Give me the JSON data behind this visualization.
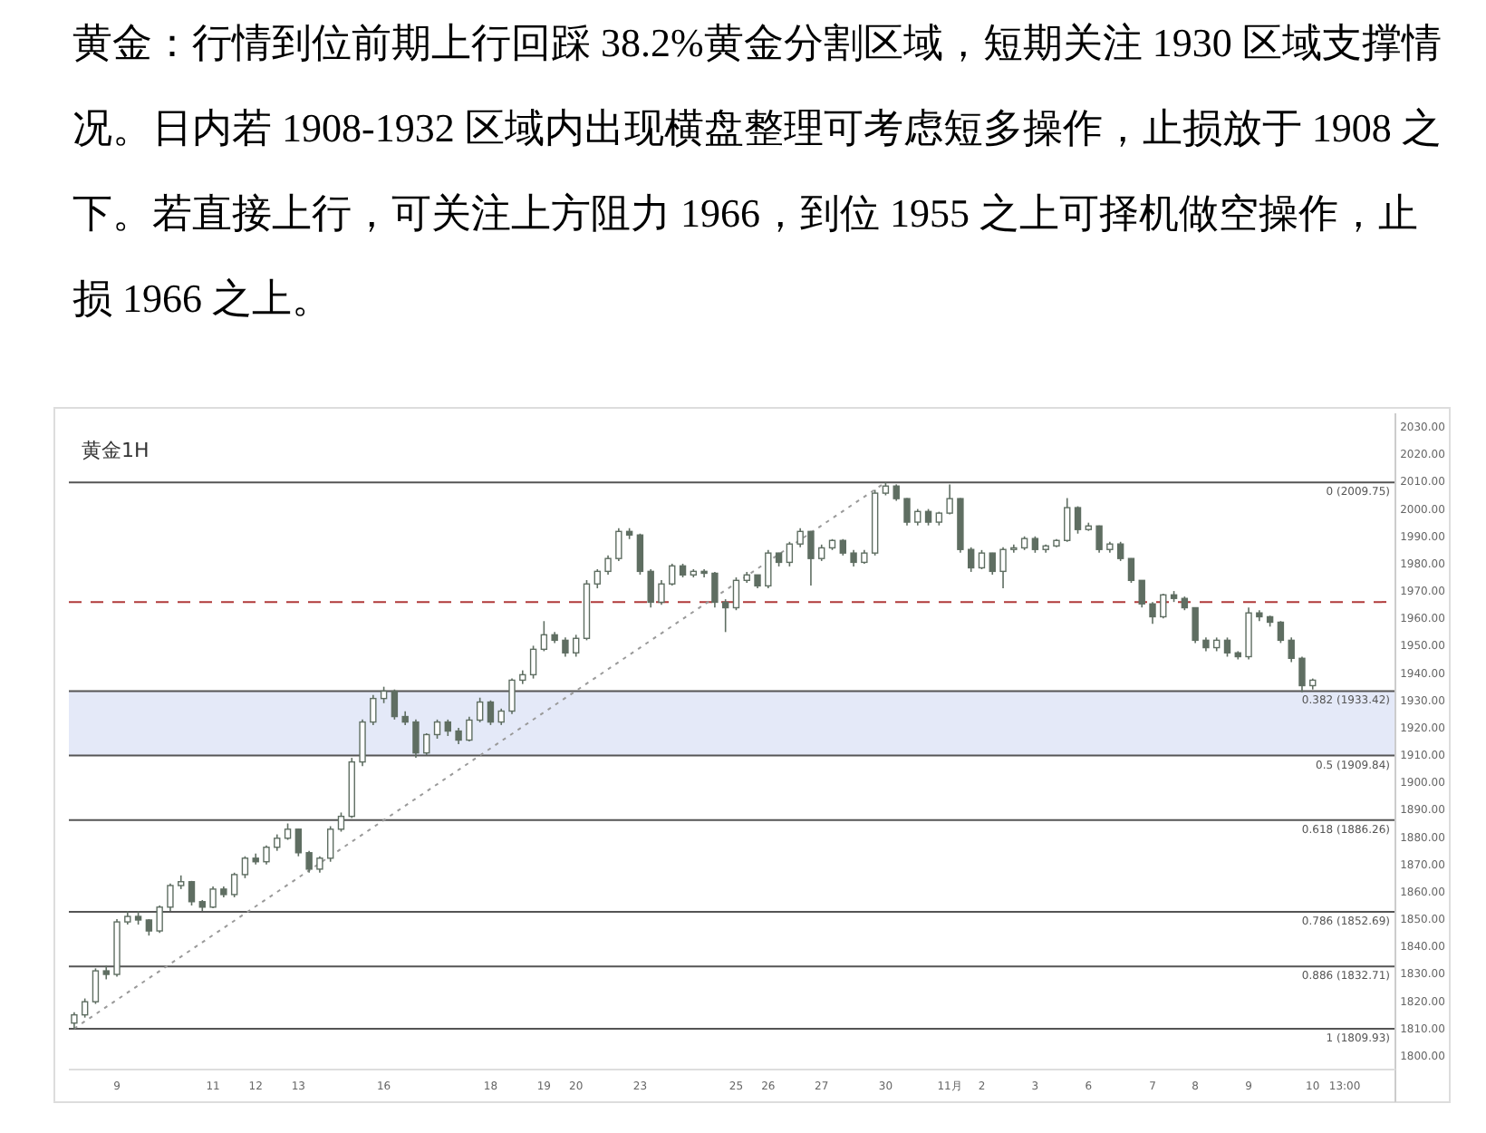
{
  "chart_data": {
    "type": "candlestick",
    "title": "黄金1H",
    "annotations": [
      "黄金：行情到位前期上行回踩 38.2%黄金分割区域，短期关注 1930 区域支撑情况。日内若 1908-1932 区域内出现横盘整理可考虑短多操作，止损放于 1908 之下。若直接上行，可关注上方阻力 1966，到位 1955 之上可择机做空操作，止损 1966 之上。"
    ],
    "color": "#5f6e62",
    "categories": [
      null,
      null,
      null,
      null,
      "9",
      null,
      null,
      null,
      null,
      null,
      null,
      null,
      null,
      "11",
      null,
      null,
      null,
      "12",
      null,
      null,
      null,
      "13",
      null,
      null,
      null,
      null,
      null,
      null,
      null,
      "16",
      null,
      null,
      null,
      null,
      null,
      null,
      null,
      null,
      null,
      "18",
      null,
      null,
      null,
      null,
      "19",
      null,
      null,
      "20",
      null,
      null,
      null,
      null,
      null,
      "23",
      null,
      null,
      null,
      null,
      null,
      null,
      null,
      null,
      "25",
      null,
      null,
      "26",
      null,
      null,
      null,
      null,
      "27",
      null,
      null,
      null,
      null,
      null,
      "30",
      null,
      null,
      null,
      null,
      null,
      "11月",
      null,
      null,
      "2",
      null,
      null,
      null,
      null,
      "3",
      null,
      null,
      null,
      null,
      "6",
      null,
      null,
      null,
      null,
      null,
      "7",
      null,
      null,
      null,
      "8",
      null,
      null,
      null,
      null,
      "9",
      null,
      null,
      null,
      null,
      null,
      "10",
      null,
      null,
      "13:00"
    ],
    "ohlc": [
      [
        1812,
        1816,
        1809.9,
        1815
      ],
      [
        1815,
        1821,
        1814,
        1819.8
      ],
      [
        1819.8,
        1832,
        1819,
        1831.1
      ],
      [
        1831.1,
        1833,
        1828,
        1829.8
      ],
      [
        1829.8,
        1850,
        1829,
        1849
      ],
      [
        1849,
        1853,
        1848,
        1851
      ],
      [
        1851,
        1853,
        1848,
        1849.7
      ],
      [
        1849.7,
        1850,
        1844,
        1845.7
      ],
      [
        1845.7,
        1855,
        1845,
        1854.4
      ],
      [
        1854.4,
        1863,
        1853,
        1862.3
      ],
      [
        1862.3,
        1866,
        1861,
        1863.7
      ],
      [
        1863.7,
        1864,
        1855,
        1856.4
      ],
      [
        1856.4,
        1857,
        1853,
        1854.4
      ],
      [
        1854.4,
        1862,
        1854,
        1861
      ],
      [
        1861,
        1862,
        1858,
        1859
      ],
      [
        1859,
        1867,
        1858,
        1866.3
      ],
      [
        1866.3,
        1873,
        1865,
        1872.3
      ],
      [
        1872.3,
        1874,
        1870,
        1871
      ],
      [
        1871,
        1877,
        1870,
        1876.3
      ],
      [
        1876.3,
        1881,
        1875,
        1879.6
      ],
      [
        1879.6,
        1885,
        1879,
        1882.9
      ],
      [
        1882.9,
        1883,
        1873,
        1874.3
      ],
      [
        1874.3,
        1875,
        1867,
        1868.3
      ],
      [
        1868.3,
        1873,
        1867,
        1872.3
      ],
      [
        1872.3,
        1884,
        1871,
        1882.9
      ],
      [
        1882.9,
        1889,
        1882,
        1887.6
      ],
      [
        1887.6,
        1909,
        1887,
        1907.5
      ],
      [
        1907.5,
        1923,
        1906,
        1922.1
      ],
      [
        1922.1,
        1932,
        1921,
        1930.7
      ],
      [
        1930.7,
        1935,
        1929,
        1933.4
      ],
      [
        1933.4,
        1934,
        1923,
        1924.1
      ],
      [
        1924.1,
        1926,
        1921,
        1922.1
      ],
      [
        1922.1,
        1923,
        1909,
        1910.8
      ],
      [
        1910.8,
        1918,
        1910,
        1917.5
      ],
      [
        1917.5,
        1923,
        1916,
        1922.1
      ],
      [
        1922.1,
        1923,
        1917,
        1918.8
      ],
      [
        1918.8,
        1920,
        1914,
        1915.5
      ],
      [
        1915.5,
        1924,
        1915,
        1922.8
      ],
      [
        1922.8,
        1931,
        1922,
        1929.4
      ],
      [
        1929.4,
        1930,
        1921,
        1922.1
      ],
      [
        1922.1,
        1927,
        1921,
        1926.1
      ],
      [
        1926.1,
        1938,
        1925,
        1937.4
      ],
      [
        1937.4,
        1941,
        1936,
        1939.4
      ],
      [
        1939.4,
        1950,
        1938,
        1948.7
      ],
      [
        1948.7,
        1959,
        1948,
        1954
      ],
      [
        1954,
        1955,
        1951,
        1952
      ],
      [
        1952,
        1953,
        1946,
        1947.4
      ],
      [
        1947.4,
        1954,
        1946,
        1952.7
      ],
      [
        1952.7,
        1974,
        1952,
        1972.6
      ],
      [
        1972.6,
        1978,
        1971,
        1977.2
      ],
      [
        1977.2,
        1983,
        1976,
        1981.9
      ],
      [
        1981.9,
        1993,
        1981,
        1991.8
      ],
      [
        1991.8,
        1993,
        1989,
        1990.5
      ],
      [
        1990.5,
        1991,
        1976,
        1977.2
      ],
      [
        1977.2,
        1978,
        1964,
        1965.9
      ],
      [
        1965.9,
        1974,
        1965,
        1972.6
      ],
      [
        1972.6,
        1980,
        1972,
        1979.2
      ],
      [
        1979.2,
        1980,
        1975,
        1975.9
      ],
      [
        1975.9,
        1978,
        1975,
        1977.2
      ],
      [
        1977.2,
        1978,
        1975,
        1976.5
      ],
      [
        1976.5,
        1977,
        1964,
        1965.9
      ],
      [
        1965.9,
        1967,
        1955,
        1963.9
      ],
      [
        1963.9,
        1975,
        1963,
        1973.9
      ],
      [
        1973.9,
        1977,
        1973,
        1975.9
      ],
      [
        1975.9,
        1976,
        1971,
        1971.9
      ],
      [
        1971.9,
        1985,
        1971,
        1983.9
      ],
      [
        1983.9,
        1984,
        1979,
        1980.5
      ],
      [
        1980.5,
        1988,
        1979,
        1987.2
      ],
      [
        1987.2,
        1993,
        1986,
        1991.8
      ],
      [
        1991.8,
        1992,
        1972,
        1981.9
      ],
      [
        1981.9,
        1987,
        1981,
        1985.8
      ],
      [
        1985.8,
        1989,
        1985,
        1988.5
      ],
      [
        1988.5,
        1989,
        1983,
        1983.9
      ],
      [
        1983.9,
        1985,
        1979,
        1980.5
      ],
      [
        1980.5,
        1985,
        1980,
        1983.9
      ],
      [
        1983.9,
        2007,
        1983,
        2005.8
      ],
      [
        2005.8,
        2009.75,
        2005,
        2008.4
      ],
      [
        2008.4,
        2009,
        2003,
        2003.8
      ],
      [
        2003.8,
        2004,
        1994,
        1995.2
      ],
      [
        1995.2,
        2000,
        1994,
        1999.1
      ],
      [
        1999.1,
        2000,
        1994,
        1995.2
      ],
      [
        1995.2,
        1999,
        1994,
        1998.5
      ],
      [
        1998.5,
        2009,
        1998,
        2003.8
      ],
      [
        2003.8,
        2004,
        1984,
        1985.2
      ],
      [
        1985.2,
        1986,
        1977,
        1978.5
      ],
      [
        1978.5,
        1985,
        1978,
        1983.9
      ],
      [
        1983.9,
        1984,
        1976,
        1977.2
      ],
      [
        1977.2,
        1986,
        1971,
        1985.2
      ],
      [
        1985.2,
        1987,
        1984,
        1985.8
      ],
      [
        1985.8,
        1990,
        1985,
        1989.2
      ],
      [
        1989.2,
        1990,
        1984,
        1985.2
      ],
      [
        1985.2,
        1987,
        1984,
        1986.5
      ],
      [
        1986.5,
        1989,
        1986,
        1988.5
      ],
      [
        1988.5,
        2004,
        1988,
        2000.5
      ],
      [
        2000.5,
        2001,
        1991,
        1992.5
      ],
      [
        1992.5,
        1995,
        1992,
        1993.8
      ],
      [
        1993.8,
        1994,
        1984,
        1985.2
      ],
      [
        1985.2,
        1988,
        1984,
        1987.2
      ],
      [
        1987.2,
        1988,
        1981,
        1981.9
      ],
      [
        1981.9,
        1982,
        1973,
        1973.9
      ],
      [
        1973.9,
        1974,
        1964,
        1965.3
      ],
      [
        1965.3,
        1966,
        1958,
        1960.6
      ],
      [
        1960.6,
        1969,
        1960,
        1968.6
      ],
      [
        1968.6,
        1970,
        1966,
        1967.3
      ],
      [
        1967.3,
        1968,
        1963,
        1963.9
      ],
      [
        1963.9,
        1964,
        1951,
        1952
      ],
      [
        1952,
        1953,
        1948,
        1949.3
      ],
      [
        1949.3,
        1953,
        1948,
        1952
      ],
      [
        1952,
        1953,
        1946,
        1947.4
      ],
      [
        1947.4,
        1948,
        1945,
        1946
      ],
      [
        1946,
        1964,
        1945,
        1962
      ],
      [
        1962,
        1963,
        1959,
        1960.6
      ],
      [
        1960.6,
        1961,
        1957,
        1958.6
      ],
      [
        1958.6,
        1959,
        1951,
        1952
      ],
      [
        1952,
        1953,
        1944,
        1945.4
      ],
      [
        1945.4,
        1946,
        1933,
        1935.4
      ],
      [
        1935.4,
        1938,
        1934,
        1937.4
      ],
      null,
      null,
      null
    ],
    "ylim": [
      1795,
      2035
    ],
    "yticks": [
      {
        "value": 1800,
        "label": "1800.00"
      },
      {
        "value": 1810,
        "label": "1810.00"
      },
      {
        "value": 1820,
        "label": "1820.00"
      },
      {
        "value": 1830,
        "label": "1830.00"
      },
      {
        "value": 1840,
        "label": "1840.00"
      },
      {
        "value": 1850,
        "label": "1850.00"
      },
      {
        "value": 1860,
        "label": "1860.00"
      },
      {
        "value": 1870,
        "label": "1870.00"
      },
      {
        "value": 1880,
        "label": "1880.00"
      },
      {
        "value": 1890,
        "label": "1890.00"
      },
      {
        "value": 1900,
        "label": "1900.00"
      },
      {
        "value": 1910,
        "label": "1910.00"
      },
      {
        "value": 1920,
        "label": "1920.00"
      },
      {
        "value": 1930,
        "label": "1930.00"
      },
      {
        "value": 1940,
        "label": "1940.00"
      },
      {
        "value": 1950,
        "label": "1950.00"
      },
      {
        "value": 1960,
        "label": "1960.00"
      },
      {
        "value": 1970,
        "label": "1970.00"
      },
      {
        "value": 1980,
        "label": "1980.00"
      },
      {
        "value": 1990,
        "label": "1990.00"
      },
      {
        "value": 2000,
        "label": "2000.00"
      },
      {
        "value": 2010,
        "label": "2010.00"
      },
      {
        "value": 2020,
        "label": "2020.00"
      },
      {
        "value": 2030,
        "label": "2030.00"
      }
    ],
    "series": [
      {
        "type": "line",
        "color": "#9a9a9a",
        "line_style": "dotted",
        "values": [
          1810,
          null,
          null,
          null,
          null,
          null,
          null,
          null,
          null,
          null,
          null,
          null,
          null,
          null,
          null,
          null,
          null,
          null,
          null,
          null,
          null,
          null,
          null,
          null,
          null,
          null,
          null,
          null,
          null,
          null,
          null,
          null,
          null,
          null,
          null,
          null,
          null,
          null,
          null,
          null,
          null,
          null,
          null,
          null,
          null,
          null,
          null,
          null,
          null,
          null,
          null,
          null,
          null,
          null,
          null,
          null,
          null,
          null,
          null,
          null,
          null,
          null,
          null,
          null,
          null,
          null,
          null,
          null,
          null,
          null,
          null,
          null,
          null,
          null,
          null,
          null,
          2009.75,
          null,
          null,
          null,
          null,
          null,
          null,
          null,
          null,
          null,
          null,
          null,
          null,
          null,
          null,
          null,
          null,
          null,
          null,
          null,
          null,
          null,
          null,
          null,
          null,
          null,
          null,
          null,
          null,
          null,
          null,
          null,
          null,
          null,
          null,
          null,
          null,
          null,
          null,
          null,
          null,
          null,
          null,
          null
        ]
      }
    ],
    "ref_lines": [
      {
        "axis": "y",
        "value": 2009.75,
        "label": "0 (2009.75)",
        "color": "#555555"
      },
      {
        "axis": "y",
        "value": 1933.42,
        "label": "0.382 (1933.42)",
        "color": "#555555"
      },
      {
        "axis": "y",
        "value": 1909.84,
        "label": "0.5 (1909.84)",
        "color": "#555555"
      },
      {
        "axis": "y",
        "value": 1886.26,
        "label": "0.618 (1886.26)",
        "color": "#555555"
      },
      {
        "axis": "y",
        "value": 1852.69,
        "label": "0.786 (1852.69)",
        "color": "#555555"
      },
      {
        "axis": "y",
        "value": 1832.71,
        "label": "0.886 (1832.71)",
        "color": "#555555"
      },
      {
        "axis": "y",
        "value": 1809.93,
        "label": "1 (1809.93)",
        "color": "#555555"
      },
      {
        "axis": "y",
        "value": 1966,
        "color": "#b03a3a",
        "line_style": "dashed"
      }
    ],
    "bands": [
      {
        "axis": "y",
        "from": 1909.84,
        "to": 1933.42,
        "color": "#e4e9f8"
      }
    ]
  }
}
